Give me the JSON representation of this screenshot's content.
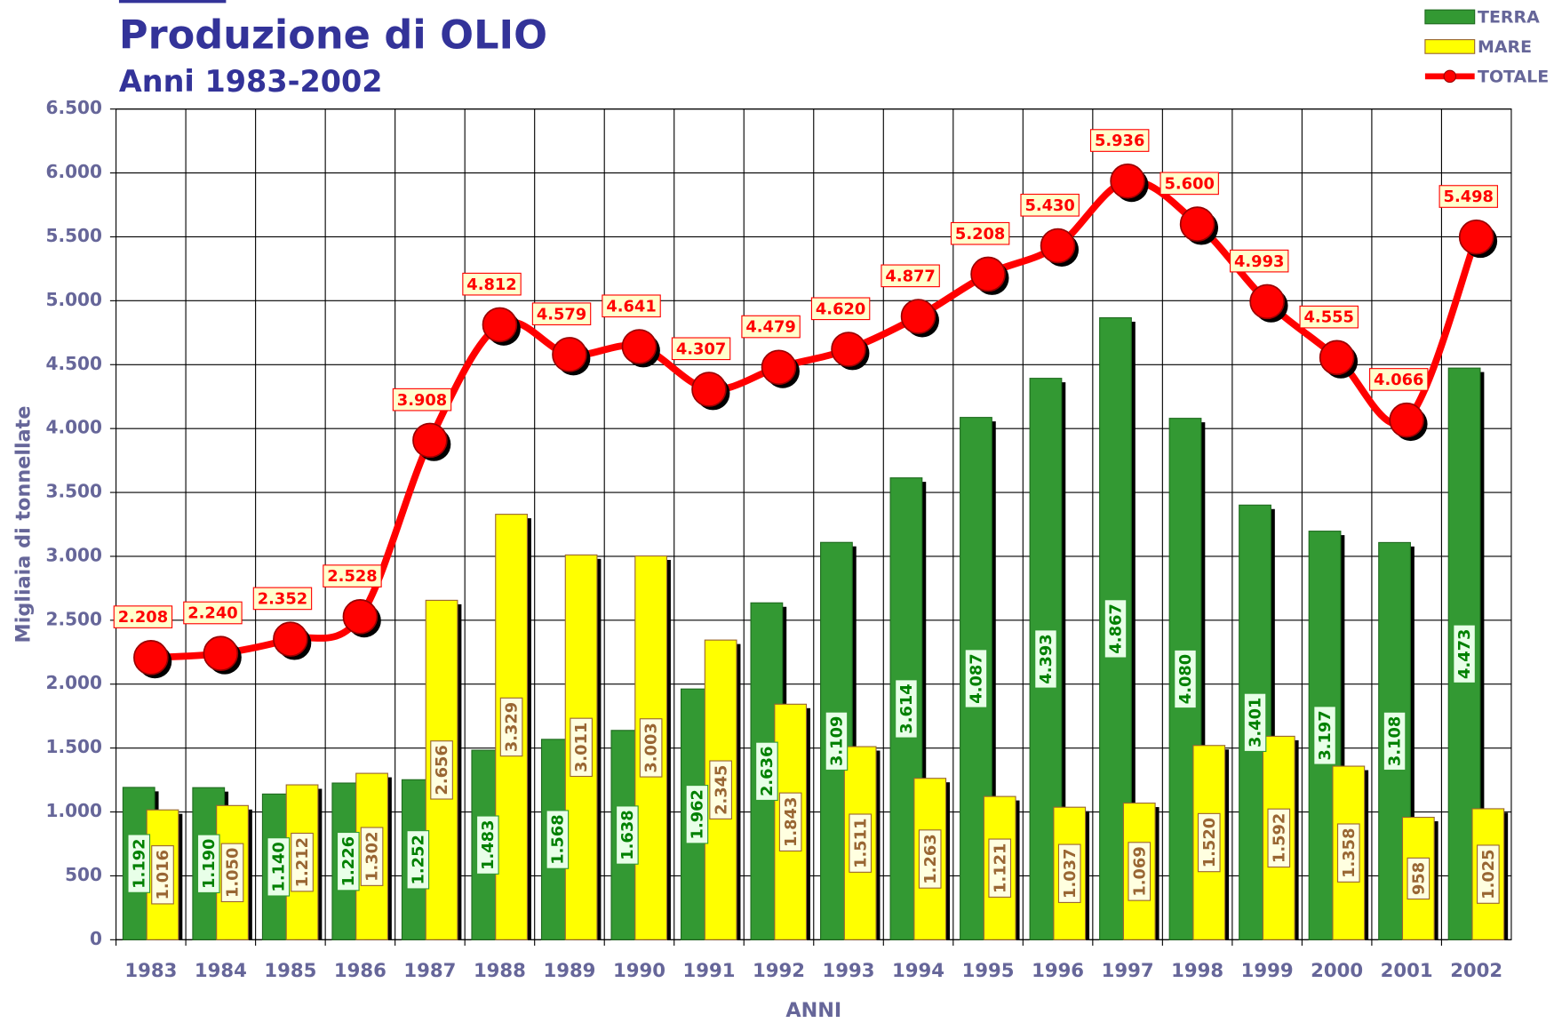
{
  "chart_data": {
    "type": "bar",
    "title": "Produzione di OLIO",
    "subtitle": "Anni 1983-2002",
    "x_label": "ANNI",
    "y_label": "Migliaia di tonnellate",
    "categories": [
      "1983",
      "1984",
      "1985",
      "1986",
      "1987",
      "1988",
      "1989",
      "1990",
      "1991",
      "1992",
      "1993",
      "1994",
      "1995",
      "1996",
      "1997",
      "1998",
      "1999",
      "2000",
      "2001",
      "2002"
    ],
    "series": [
      {
        "name": "TERRA",
        "color": "#339933",
        "type": "bar",
        "values": [
          1192,
          1190,
          1140,
          1226,
          1252,
          1483,
          1568,
          1638,
          1962,
          2636,
          3109,
          3614,
          4087,
          4393,
          4867,
          4080,
          3401,
          3197,
          3108,
          4473
        ],
        "value_labels": [
          "1.192",
          "1.190",
          "1.140",
          "1.226",
          "1.252",
          "1.483",
          "1.568",
          "1.638",
          "1.962",
          "2.636",
          "3.109",
          "3.614",
          "4.087",
          "4.393",
          "4.867",
          "4.080",
          "3.401",
          "3.197",
          "3.108",
          "4.473"
        ]
      },
      {
        "name": "MARE",
        "color": "#ffff00",
        "type": "bar",
        "values": [
          1016,
          1050,
          1212,
          1302,
          2656,
          3329,
          3011,
          3003,
          2345,
          1843,
          1511,
          1263,
          1121,
          1037,
          1069,
          1520,
          1592,
          1358,
          958,
          1025
        ],
        "value_labels": [
          "1.016",
          "1.050",
          "1.212",
          "1.302",
          "2.656",
          "3.329",
          "3.011",
          "3.003",
          "2.345",
          "1.843",
          "1.511",
          "1.263",
          "1.121",
          "1.037",
          "1.069",
          "1.520",
          "1.592",
          "1.358",
          "958",
          "1.025"
        ]
      },
      {
        "name": "TOTALE",
        "color": "#ff0000",
        "type": "line",
        "values": [
          2208,
          2240,
          2352,
          2528,
          3908,
          4812,
          4579,
          4641,
          4307,
          4479,
          4620,
          4877,
          5208,
          5430,
          5936,
          5600,
          4993,
          4555,
          4066,
          5498
        ],
        "value_labels": [
          "2.208",
          "2.240",
          "2.352",
          "2.528",
          "3.908",
          "4.812",
          "4.579",
          "4.641",
          "4.307",
          "4.479",
          "4.620",
          "4.877",
          "5.208",
          "5.430",
          "5.936",
          "5.600",
          "4.993",
          "4.555",
          "4.066",
          "5.498"
        ]
      }
    ],
    "ylim": [
      0,
      6500
    ],
    "yticks": [
      0,
      500,
      {
        "value": 1000,
        "label": "1.000"
      },
      {
        "value": 1500,
        "label": "1.500"
      },
      {
        "value": 2000,
        "label": "2.000"
      },
      {
        "value": 2500,
        "label": "2.500"
      },
      {
        "value": 3000,
        "label": "3.000"
      },
      {
        "value": 3500,
        "label": "3.500"
      },
      {
        "value": 4000,
        "label": "4.000"
      },
      {
        "value": 4500,
        "label": "4.500"
      },
      {
        "value": 5000,
        "label": "5.000"
      },
      {
        "value": 5500,
        "label": "5.500"
      },
      {
        "value": 6000,
        "label": "6.000"
      },
      {
        "value": 6500,
        "label": "6.500"
      }
    ],
    "grid": true,
    "legend": "top-right"
  }
}
